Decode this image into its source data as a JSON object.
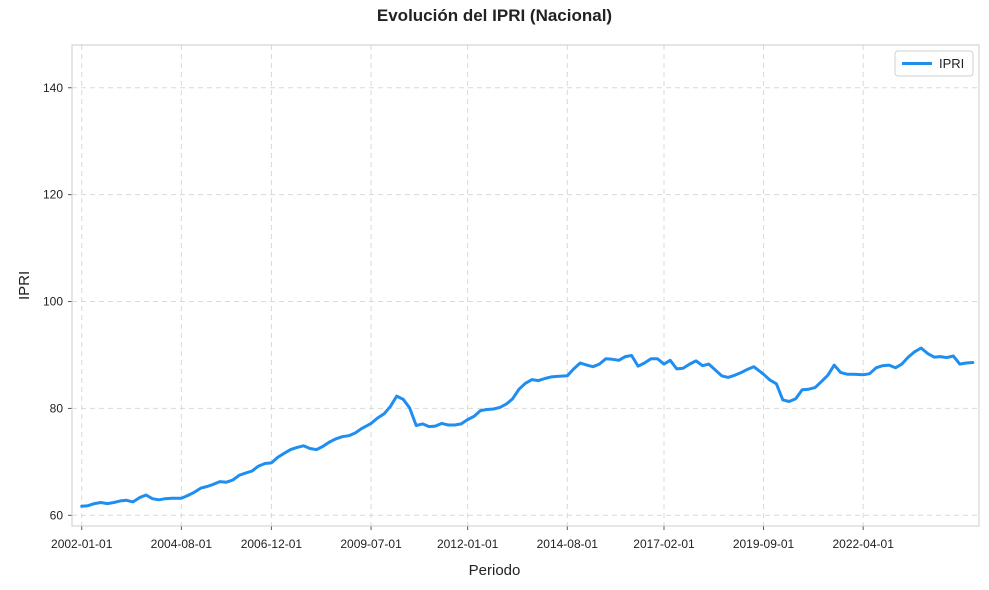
{
  "chart_data": {
    "type": "line",
    "title": "Evolución del IPRI (Nacional)",
    "xlabel": "Periodo",
    "ylabel": "IPRI",
    "ylim": [
      58,
      148
    ],
    "yticks": [
      60,
      80,
      100,
      120,
      140
    ],
    "xlim": [
      "2001-10-01",
      "2025-04-01"
    ],
    "xticks": [
      "2002-01-01",
      "2004-08-01",
      "2006-12-01",
      "2009-07-01",
      "2012-01-01",
      "2014-08-01",
      "2017-02-01",
      "2019-09-01",
      "2022-04-01"
    ],
    "grid": true,
    "legend_position": "top-right",
    "color": "#1f8ef1",
    "series": [
      {
        "name": "IPRI",
        "points": [
          [
            "2002-01-01",
            61.7
          ],
          [
            "2002-03-01",
            61.8
          ],
          [
            "2002-05-01",
            62.2
          ],
          [
            "2002-07-01",
            62.4
          ],
          [
            "2002-09-01",
            62.2
          ],
          [
            "2002-11-01",
            62.4
          ],
          [
            "2003-01-01",
            62.7
          ],
          [
            "2003-03-01",
            62.8
          ],
          [
            "2003-05-01",
            62.5
          ],
          [
            "2003-07-01",
            63.3
          ],
          [
            "2003-09-01",
            63.8
          ],
          [
            "2003-11-01",
            63.1
          ],
          [
            "2004-01-01",
            62.9
          ],
          [
            "2004-03-01",
            63.1
          ],
          [
            "2004-05-01",
            63.2
          ],
          [
            "2004-08-01",
            63.2
          ],
          [
            "2004-10-01",
            63.7
          ],
          [
            "2004-12-01",
            64.3
          ],
          [
            "2005-02-01",
            65.1
          ],
          [
            "2005-04-01",
            65.4
          ],
          [
            "2005-06-01",
            65.8
          ],
          [
            "2005-08-01",
            66.3
          ],
          [
            "2005-10-01",
            66.2
          ],
          [
            "2005-12-01",
            66.6
          ],
          [
            "2006-02-01",
            67.5
          ],
          [
            "2006-04-01",
            67.9
          ],
          [
            "2006-06-01",
            68.3
          ],
          [
            "2006-08-01",
            69.2
          ],
          [
            "2006-10-01",
            69.7
          ],
          [
            "2006-12-01",
            69.8
          ],
          [
            "2007-02-01",
            70.9
          ],
          [
            "2007-04-01",
            71.6
          ],
          [
            "2007-06-01",
            72.3
          ],
          [
            "2007-08-01",
            72.7
          ],
          [
            "2007-10-01",
            73.0
          ],
          [
            "2007-12-01",
            72.5
          ],
          [
            "2008-02-01",
            72.3
          ],
          [
            "2008-04-01",
            72.9
          ],
          [
            "2008-06-01",
            73.7
          ],
          [
            "2008-08-01",
            74.3
          ],
          [
            "2008-10-01",
            74.7
          ],
          [
            "2008-12-01",
            74.9
          ],
          [
            "2009-02-01",
            75.4
          ],
          [
            "2009-04-01",
            76.2
          ],
          [
            "2009-07-01",
            77.2
          ],
          [
            "2009-09-01",
            78.2
          ],
          [
            "2009-11-01",
            79.0
          ],
          [
            "2010-01-01",
            80.4
          ],
          [
            "2010-03-01",
            82.3
          ],
          [
            "2010-05-01",
            81.7
          ],
          [
            "2010-07-01",
            80.1
          ],
          [
            "2010-09-01",
            76.8
          ],
          [
            "2010-11-01",
            77.1
          ],
          [
            "2011-01-01",
            76.6
          ],
          [
            "2011-03-01",
            76.7
          ],
          [
            "2011-05-01",
            77.2
          ],
          [
            "2011-07-01",
            76.9
          ],
          [
            "2011-09-01",
            76.9
          ],
          [
            "2011-11-01",
            77.1
          ],
          [
            "2012-01-01",
            77.9
          ],
          [
            "2012-03-01",
            78.5
          ],
          [
            "2012-05-01",
            79.6
          ],
          [
            "2012-07-01",
            79.8
          ],
          [
            "2012-09-01",
            79.9
          ],
          [
            "2012-11-01",
            80.2
          ],
          [
            "2013-01-01",
            80.8
          ],
          [
            "2013-03-01",
            81.8
          ],
          [
            "2013-05-01",
            83.6
          ],
          [
            "2013-07-01",
            84.7
          ],
          [
            "2013-09-01",
            85.4
          ],
          [
            "2013-11-01",
            85.2
          ],
          [
            "2014-01-01",
            85.6
          ],
          [
            "2014-03-01",
            85.9
          ],
          [
            "2014-05-01",
            86.0
          ],
          [
            "2014-08-01",
            86.1
          ],
          [
            "2014-10-01",
            87.4
          ],
          [
            "2014-12-01",
            88.5
          ],
          [
            "2015-02-01",
            88.1
          ],
          [
            "2015-04-01",
            87.8
          ],
          [
            "2015-06-01",
            88.3
          ],
          [
            "2015-08-01",
            89.3
          ],
          [
            "2015-10-01",
            89.2
          ],
          [
            "2015-12-01",
            89.0
          ],
          [
            "2016-02-01",
            89.7
          ],
          [
            "2016-04-01",
            89.9
          ],
          [
            "2016-06-01",
            87.9
          ],
          [
            "2016-08-01",
            88.5
          ],
          [
            "2016-10-01",
            89.3
          ],
          [
            "2016-12-01",
            89.3
          ],
          [
            "2017-02-01",
            88.3
          ],
          [
            "2017-04-01",
            89.0
          ],
          [
            "2017-06-01",
            87.4
          ],
          [
            "2017-08-01",
            87.5
          ],
          [
            "2017-10-01",
            88.3
          ],
          [
            "2017-12-01",
            88.9
          ],
          [
            "2018-02-01",
            88.0
          ],
          [
            "2018-04-01",
            88.3
          ],
          [
            "2018-06-01",
            87.2
          ],
          [
            "2018-08-01",
            86.1
          ],
          [
            "2018-10-01",
            85.8
          ],
          [
            "2018-12-01",
            86.2
          ],
          [
            "2019-02-01",
            86.7
          ],
          [
            "2019-04-01",
            87.3
          ],
          [
            "2019-06-01",
            87.8
          ],
          [
            "2019-09-01",
            86.4
          ],
          [
            "2019-11-01",
            85.3
          ],
          [
            "2020-01-01",
            84.6
          ],
          [
            "2020-03-01",
            81.6
          ],
          [
            "2020-05-01",
            81.3
          ],
          [
            "2020-07-01",
            81.8
          ],
          [
            "2020-09-01",
            83.5
          ],
          [
            "2020-11-01",
            83.6
          ],
          [
            "2021-01-01",
            83.9
          ],
          [
            "2021-03-01",
            85.0
          ],
          [
            "2021-05-01",
            86.2
          ],
          [
            "2021-07-01",
            88.1
          ],
          [
            "2021-09-01",
            86.7
          ],
          [
            "2021-11-01",
            86.4
          ],
          [
            "2022-01-01",
            86.4
          ],
          [
            "2022-04-01",
            86.3
          ],
          [
            "2022-06-01",
            86.5
          ],
          [
            "2022-08-01",
            87.6
          ],
          [
            "2022-10-01",
            88.0
          ],
          [
            "2022-12-01",
            88.1
          ],
          [
            "2023-02-01",
            87.6
          ],
          [
            "2023-04-01",
            88.3
          ],
          [
            "2023-06-01",
            89.6
          ],
          [
            "2023-08-01",
            90.6
          ],
          [
            "2023-10-01",
            91.3
          ],
          [
            "2023-12-01",
            90.3
          ],
          [
            "2024-02-01",
            89.6
          ],
          [
            "2024-04-01",
            89.7
          ],
          [
            "2024-06-01",
            89.5
          ],
          [
            "2024-08-01",
            89.8
          ],
          [
            "2024-10-01",
            88.3
          ],
          [
            "2024-12-01",
            88.5
          ],
          [
            "2025-02-01",
            88.6
          ]
        ]
      }
    ]
  }
}
